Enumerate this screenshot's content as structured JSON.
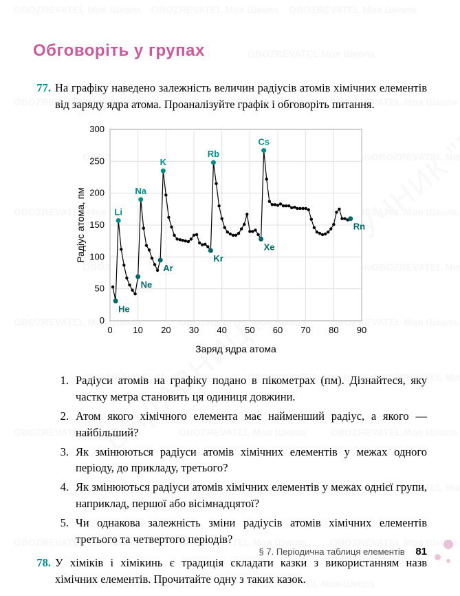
{
  "watermark_small": "OBOZREVATEL Моя Школа",
  "watermark_diag": "ВИДАВНИЦТВО ПІДРУЧНИК \"РАНОК\"",
  "section_title": "Обговоріть у групах",
  "tasks": {
    "t77_num": "77.",
    "t77_body": "На графіку наведено залежність величин радіусів атомів хімічних елементів від заряду ядра атома. Проаналізуйте графік і обговоріть питання.",
    "t78_num": "78.",
    "t78_body": "У хіміків і хімікинь є традиція складати казки з використанням назв хімічних елементів. Прочитайте одну з таких казок."
  },
  "chart": {
    "y_label": "Радіус атома, пм",
    "x_label": "Заряд ядра атома",
    "x_min": 0,
    "x_max": 90,
    "x_step": 10,
    "y_min": 0,
    "y_max": 300,
    "y_step": 50,
    "bg": "#ffffff",
    "grid_color": "#d9d9d9",
    "axis_color": "#000000",
    "axis_font": 13,
    "series_color": "#000000",
    "label_peak_color": "#008b8b",
    "label_valley_color": "#006666",
    "label_font": 13,
    "peaks": [
      {
        "lbl": "Li",
        "z": 3,
        "r": 157
      },
      {
        "lbl": "Na",
        "z": 11,
        "r": 190
      },
      {
        "lbl": "K",
        "z": 19,
        "r": 235
      },
      {
        "lbl": "Rb",
        "z": 37,
        "r": 248
      },
      {
        "lbl": "Cs",
        "z": 55,
        "r": 267
      }
    ],
    "valleys": [
      {
        "lbl": "He",
        "z": 2,
        "r": 31
      },
      {
        "lbl": "Ne",
        "z": 10,
        "r": 69
      },
      {
        "lbl": "Ar",
        "z": 18,
        "r": 95
      },
      {
        "lbl": "Kr",
        "z": 36,
        "r": 110
      },
      {
        "lbl": "Xe",
        "z": 54,
        "r": 128
      },
      {
        "lbl": "Rn",
        "z": 86,
        "r": 160
      }
    ],
    "points": [
      [
        1,
        53
      ],
      [
        2,
        31
      ],
      [
        3,
        157
      ],
      [
        4,
        112
      ],
      [
        5,
        87
      ],
      [
        6,
        67
      ],
      [
        7,
        56
      ],
      [
        8,
        48
      ],
      [
        9,
        42
      ],
      [
        10,
        69
      ],
      [
        11,
        190
      ],
      [
        12,
        145
      ],
      [
        13,
        118
      ],
      [
        14,
        111
      ],
      [
        15,
        98
      ],
      [
        16,
        88
      ],
      [
        17,
        79
      ],
      [
        18,
        95
      ],
      [
        19,
        235
      ],
      [
        20,
        197
      ],
      [
        21,
        162
      ],
      [
        22,
        147
      ],
      [
        23,
        134
      ],
      [
        24,
        128
      ],
      [
        25,
        127
      ],
      [
        26,
        126
      ],
      [
        27,
        125
      ],
      [
        28,
        124
      ],
      [
        29,
        128
      ],
      [
        30,
        134
      ],
      [
        31,
        135
      ],
      [
        32,
        122
      ],
      [
        33,
        119
      ],
      [
        34,
        120
      ],
      [
        35,
        116
      ],
      [
        36,
        110
      ],
      [
        37,
        248
      ],
      [
        38,
        215
      ],
      [
        39,
        180
      ],
      [
        40,
        160
      ],
      [
        41,
        146
      ],
      [
        42,
        139
      ],
      [
        43,
        136
      ],
      [
        44,
        134
      ],
      [
        45,
        134
      ],
      [
        46,
        137
      ],
      [
        47,
        144
      ],
      [
        48,
        151
      ],
      [
        49,
        167
      ],
      [
        50,
        140
      ],
      [
        51,
        140
      ],
      [
        52,
        142
      ],
      [
        53,
        135
      ],
      [
        54,
        128
      ],
      [
        55,
        267
      ],
      [
        56,
        222
      ],
      [
        57,
        187
      ],
      [
        58,
        182
      ],
      [
        59,
        182
      ],
      [
        60,
        181
      ],
      [
        61,
        183
      ],
      [
        62,
        180
      ],
      [
        63,
        180
      ],
      [
        64,
        180
      ],
      [
        65,
        177
      ],
      [
        66,
        178
      ],
      [
        67,
        176
      ],
      [
        68,
        176
      ],
      [
        69,
        176
      ],
      [
        70,
        176
      ],
      [
        71,
        174
      ],
      [
        72,
        159
      ],
      [
        73,
        146
      ],
      [
        74,
        139
      ],
      [
        75,
        137
      ],
      [
        76,
        135
      ],
      [
        77,
        136
      ],
      [
        78,
        139
      ],
      [
        79,
        144
      ],
      [
        80,
        151
      ],
      [
        81,
        170
      ],
      [
        82,
        175
      ],
      [
        83,
        160
      ],
      [
        84,
        160
      ],
      [
        85,
        158
      ],
      [
        86,
        160
      ]
    ]
  },
  "questions": {
    "q1_num": "1.",
    "q1": "Радіуси атомів на графіку подано в пікометрах (пм). Дізнайтеся, яку частку метра становить ця одиниця довжини.",
    "q2_num": "2.",
    "q2": "Атом якого хімічного елемента має найменший радіус, а якого — найбільший?",
    "q3_num": "3.",
    "q3": "Як змінюються радіуси атомів хімічних елементів у межах одного періоду, до прикладу, третього?",
    "q4_num": "4.",
    "q4": "Як змінюються радіуси атомів хімічних елементів у межах однієї групи, наприклад, першої або вісімнадцятої?",
    "q5_num": "5.",
    "q5": "Чи однакова залежність зміни радіусів атомів хімічних елементів третього та четвертого періодів?"
  },
  "footer": {
    "section": "§ 7. Періодична таблиця елементів",
    "page": "81"
  },
  "colors": {
    "title": "#c85a9e",
    "task_num": "#008b8b"
  }
}
